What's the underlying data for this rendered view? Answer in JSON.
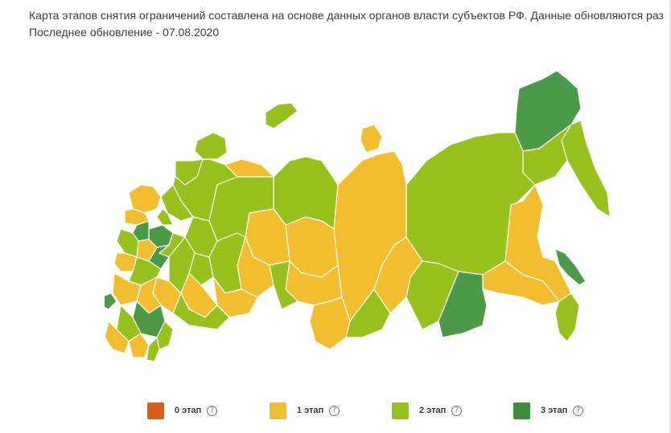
{
  "info": {
    "description": "Карта этапов снятия ограничений составлена на основе данных органов власти субъектов РФ. Данные обновляются раз в неделю",
    "last_update": "Последнее обновление - 07.08.2020"
  },
  "map": {
    "colors": {
      "stage0": "#d95f16",
      "stage1": "#f2bd2f",
      "stage2": "#97c11c",
      "stage3": "#3a8f3a",
      "border": "#ffffff"
    }
  },
  "legend": {
    "items": [
      {
        "label": "0 этап",
        "color": "#d95f16",
        "help_icon": "question-circle-icon",
        "help": "?"
      },
      {
        "label": "1 этап",
        "color": "#f2bd2f",
        "help_icon": "question-circle-icon",
        "help": "?"
      },
      {
        "label": "2 этап",
        "color": "#97c11c",
        "help_icon": "question-circle-icon",
        "help": "?"
      },
      {
        "label": "3 этап",
        "color": "#3a8f3a",
        "help_icon": "question-circle-icon",
        "help": "?"
      }
    ]
  }
}
